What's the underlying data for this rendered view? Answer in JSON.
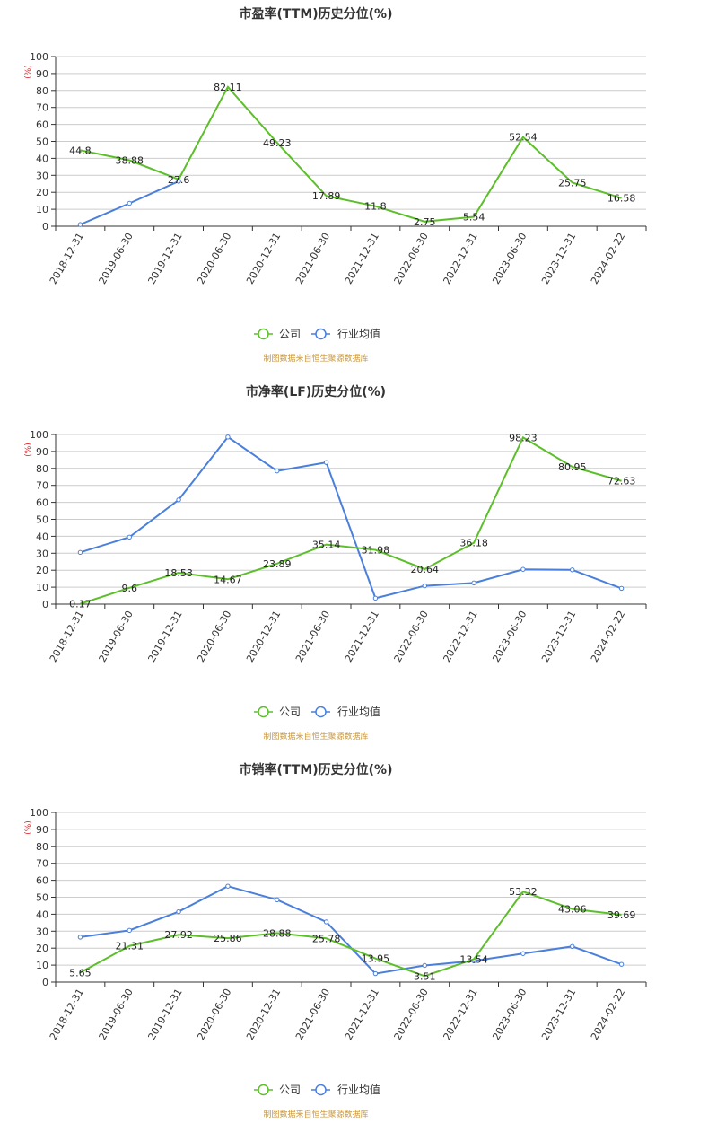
{
  "colors": {
    "company": "#5cbf2a",
    "industry": "#4a7fdc",
    "grid": "#cccccc",
    "axis": "#333333",
    "unit": "#e02020",
    "source": "#c8963c"
  },
  "legend": {
    "company": "公司",
    "industry": "行业均值"
  },
  "source_text": "制图数据来自恒生聚源数据库",
  "chart_data": [
    {
      "type": "line",
      "title": "市盈率(TTM)历史分位(%)",
      "ylabel": "(%)",
      "ylim": [
        0,
        100
      ],
      "yticks": [
        "0",
        "10",
        "20",
        "30",
        "40",
        "50",
        "60",
        "70",
        "80",
        "90",
        "100"
      ],
      "categories": [
        "2018-12-31",
        "2019-06-30",
        "2019-12-31",
        "2020-06-30",
        "2020-12-31",
        "2021-06-30",
        "2021-12-31",
        "2022-06-30",
        "2022-12-31",
        "2023-06-30",
        "2023-12-31",
        "2024-02-22"
      ],
      "series": [
        {
          "name": "公司",
          "values": [
            44.8,
            38.88,
            27.6,
            82.11,
            49.23,
            17.89,
            11.8,
            2.75,
            5.54,
            52.54,
            25.75,
            16.58
          ],
          "labels": [
            "44.8",
            "38.88",
            "27.6",
            "82.11",
            "49.23",
            "17.89",
            "11.8",
            "2.75",
            "5.54",
            "52.54",
            "25.75",
            "16.58"
          ]
        },
        {
          "name": "行业均值",
          "values": [
            1,
            13.5,
            26.5,
            null,
            null,
            null,
            null,
            null,
            null,
            null,
            null,
            null
          ]
        }
      ]
    },
    {
      "type": "line",
      "title": "市净率(LF)历史分位(%)",
      "ylabel": "(%)",
      "ylim": [
        0,
        100
      ],
      "yticks": [
        "0",
        "10",
        "20",
        "30",
        "40",
        "50",
        "60",
        "70",
        "80",
        "90",
        "100"
      ],
      "categories": [
        "2018-12-31",
        "2019-06-30",
        "2019-12-31",
        "2020-06-30",
        "2020-12-31",
        "2021-06-30",
        "2021-12-31",
        "2022-06-30",
        "2022-12-31",
        "2023-06-30",
        "2023-12-31",
        "2024-02-22"
      ],
      "series": [
        {
          "name": "公司",
          "values": [
            0.17,
            9.6,
            18.53,
            14.67,
            23.89,
            35.14,
            31.98,
            20.64,
            36.18,
            98.23,
            80.95,
            72.63
          ],
          "labels": [
            "0.17",
            "9.6",
            "18.53",
            "14.67",
            "23.89",
            "35.14",
            "31.98",
            "20.64",
            "36.18",
            "98.23",
            "80.95",
            "72.63"
          ]
        },
        {
          "name": "行业均值",
          "values": [
            30.5,
            39.5,
            61.5,
            98.5,
            78.5,
            83.5,
            3.5,
            10.8,
            12.5,
            20.5,
            20.2,
            9.3
          ]
        }
      ]
    },
    {
      "type": "line",
      "title": "市销率(TTM)历史分位(%)",
      "ylabel": "(%)",
      "ylim": [
        0,
        100
      ],
      "yticks": [
        "0",
        "10",
        "20",
        "30",
        "40",
        "50",
        "60",
        "70",
        "80",
        "90",
        "100"
      ],
      "categories": [
        "2018-12-31",
        "2019-06-30",
        "2019-12-31",
        "2020-06-30",
        "2020-12-31",
        "2021-06-30",
        "2021-12-31",
        "2022-06-30",
        "2022-12-31",
        "2023-06-30",
        "2023-12-31",
        "2024-02-22"
      ],
      "series": [
        {
          "name": "公司",
          "values": [
            5.65,
            21.31,
            27.92,
            25.86,
            28.88,
            25.78,
            13.95,
            3.51,
            13.54,
            53.32,
            43.06,
            39.69
          ],
          "labels": [
            "5.65",
            "21.31",
            "27.92",
            "25.86",
            "28.88",
            "25.78",
            "13.95",
            "3.51",
            "13.54",
            "53.32",
            "43.06",
            "39.69"
          ]
        },
        {
          "name": "行业均值",
          "values": [
            26.5,
            30.5,
            41.5,
            56.5,
            48.5,
            35.5,
            5,
            9.8,
            12.5,
            16.8,
            21,
            10.5
          ]
        }
      ]
    }
  ]
}
